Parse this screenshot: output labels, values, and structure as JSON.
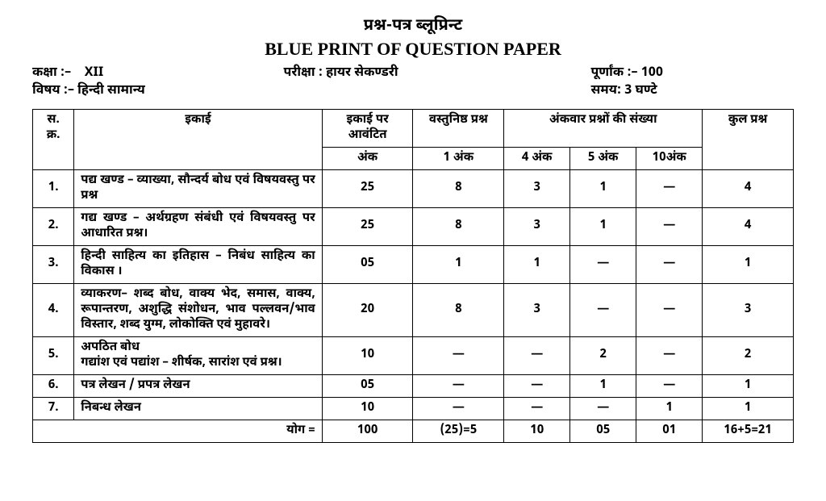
{
  "header": {
    "title_hi": "प्रश्न-पत्र ब्लूप्रिन्ट",
    "title_en": "BLUE PRINT OF QUESTION PAPER",
    "class_label": "कक्षा :–",
    "class_value": "XII",
    "exam_label": "परीक्षा :",
    "exam_value": "हायर सेकण्डरी",
    "marks_label": "पूर्णांक :–",
    "marks_value": "100",
    "subject_label": "विषय :–",
    "subject_value": "हिन्दी सामान्य",
    "time_label": "समय:",
    "time_value": "3 घण्टे"
  },
  "table": {
    "columns": {
      "sn": "स. क्र.",
      "unit": "इकाई",
      "allotted_top": "इकाई पर आवंटित",
      "allotted_sub": "अंक",
      "objective_top": "वस्तुनिष्ठ प्रश्न",
      "objective_sub": "1 अंक",
      "markwise": "अंकवार प्रश्नों की संख्या",
      "m4": "4 अंक",
      "m5": "5 अंक",
      "m10": "10अंक",
      "total": "कुल प्रश्न"
    },
    "rows": [
      {
        "sn": "1.",
        "unit": "पद्य खण्ड – व्याख्या, सौन्दर्य बोध एवं विषयवस्तु पर प्रश्न",
        "allotted": "25",
        "obj": "8",
        "m4": "3",
        "m5": "1",
        "m10": "—",
        "total": "4"
      },
      {
        "sn": "2.",
        "unit": "गद्य खण्ड – अर्थग्रहण संबंधी एवं विषयवस्तु पर आधारित प्रश्न।",
        "allotted": "25",
        "obj": "8",
        "m4": "3",
        "m5": "1",
        "m10": "—",
        "total": "4"
      },
      {
        "sn": "3.",
        "unit": "हिन्दी साहित्य का इतिहास – निबंध साहित्य का विकास ।",
        "allotted": "05",
        "obj": "1",
        "m4": "1",
        "m5": "—",
        "m10": "—",
        "total": "1"
      },
      {
        "sn": "4.",
        "unit": "व्याकरण– शब्द बोध, वाक्य भेद, समास, वाक्य, रूपान्तरण, अशुद्धि संशोधन, भाव पल्लवन/भाव विस्तार, शब्द युग्म, लोकोक्ति एवं मुहावरे।",
        "allotted": "20",
        "obj": "8",
        "m4": "3",
        "m5": "—",
        "m10": "—",
        "total": "3"
      },
      {
        "sn": "5.",
        "unit": "अपठित बोध\nगद्यांश एवं पद्यांश – शीर्षक, सारांश एवं प्रश्न।",
        "allotted": "10",
        "obj": "—",
        "m4": "—",
        "m5": "2",
        "m10": "—",
        "total": "2"
      },
      {
        "sn": "6.",
        "unit": "पत्र लेखन / प्रपत्र लेखन",
        "allotted": "05",
        "obj": "—",
        "m4": "—",
        "m5": "1",
        "m10": "—",
        "total": "1"
      },
      {
        "sn": "7.",
        "unit": "निबन्ध लेखन",
        "allotted": "10",
        "obj": "—",
        "m4": "—",
        "m5": "—",
        "m10": "1",
        "total": "1"
      }
    ],
    "footer": {
      "label": "योग =",
      "allotted": "100",
      "obj": "(25)=5",
      "m4": "10",
      "m5": "05",
      "m10": "01",
      "total": "16+5=21"
    }
  }
}
